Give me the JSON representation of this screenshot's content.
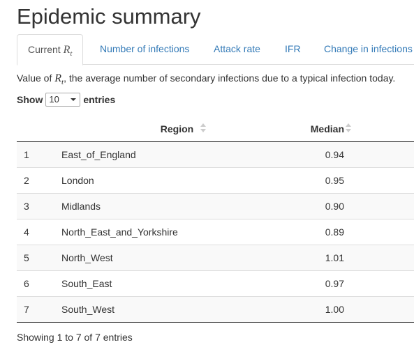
{
  "page_title": "Epidemic summary",
  "tabs": [
    {
      "label_prefix": "Current ",
      "math_main": "R",
      "math_sub": "t",
      "active": true
    },
    {
      "label": "Number of infections"
    },
    {
      "label": "Attack rate"
    },
    {
      "label": "IFR"
    },
    {
      "label": "Change in infections"
    }
  ],
  "description": {
    "prefix": "Value of ",
    "math_main": "R",
    "math_sub": "t",
    "suffix": ", the average number of secondary infections due to a typical infection today."
  },
  "length_control": {
    "show_label": "Show",
    "selected_value": "10",
    "entries_label": "entries"
  },
  "table": {
    "columns": {
      "index": "",
      "region": "Region",
      "median": "Median"
    },
    "rows": [
      {
        "index": "1",
        "region": "East_of_England",
        "median": "0.94"
      },
      {
        "index": "2",
        "region": "London",
        "median": "0.95"
      },
      {
        "index": "3",
        "region": "Midlands",
        "median": "0.90"
      },
      {
        "index": "4",
        "region": "North_East_and_Yorkshire",
        "median": "0.89"
      },
      {
        "index": "5",
        "region": "North_West",
        "median": "1.01"
      },
      {
        "index": "6",
        "region": "South_East",
        "median": "0.97"
      },
      {
        "index": "7",
        "region": "South_West",
        "median": "1.00"
      }
    ]
  },
  "info_text": "Showing 1 to 7 of 7 entries",
  "colors": {
    "link": "#337ab7",
    "text": "#333333",
    "border": "#dddddd",
    "stripe": "#f9f9f9"
  }
}
